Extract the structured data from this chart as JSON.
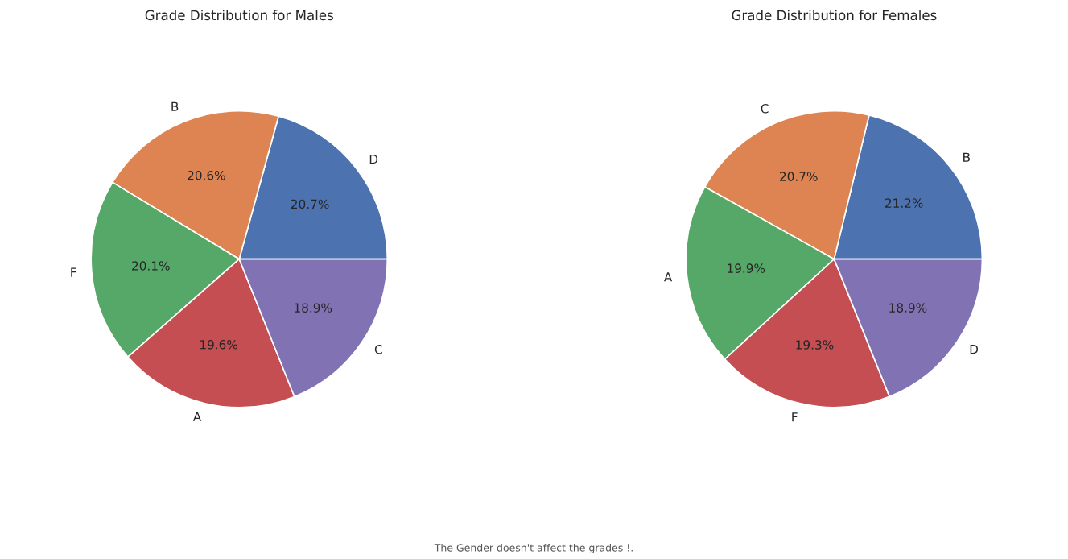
{
  "chart_data": [
    {
      "type": "pie",
      "title": "Grade Distribution for Males",
      "categories": [
        "D",
        "B",
        "F",
        "A",
        "C"
      ],
      "values": [
        20.7,
        20.6,
        20.1,
        19.6,
        18.9
      ],
      "colors": [
        "#4c72b0",
        "#dd8452",
        "#55a868",
        "#c44e52",
        "#8172b3"
      ],
      "data_labels": true,
      "value_labels": [
        "20.7%",
        "20.6%",
        "20.1%",
        "19.6%",
        "18.9%"
      ],
      "annotations": [
        "The Gender doesn't affect the grades !."
      ]
    },
    {
      "type": "pie",
      "title": "Grade Distribution for Females",
      "categories": [
        "B",
        "C",
        "A",
        "F",
        "D"
      ],
      "values": [
        21.2,
        20.7,
        19.9,
        19.3,
        18.9
      ],
      "colors": [
        "#4c72b0",
        "#dd8452",
        "#55a868",
        "#c44e52",
        "#8172b3"
      ],
      "data_labels": true,
      "value_labels": [
        "21.2%",
        "20.7%",
        "19.9%",
        "19.3%",
        "18.9%"
      ]
    }
  ]
}
